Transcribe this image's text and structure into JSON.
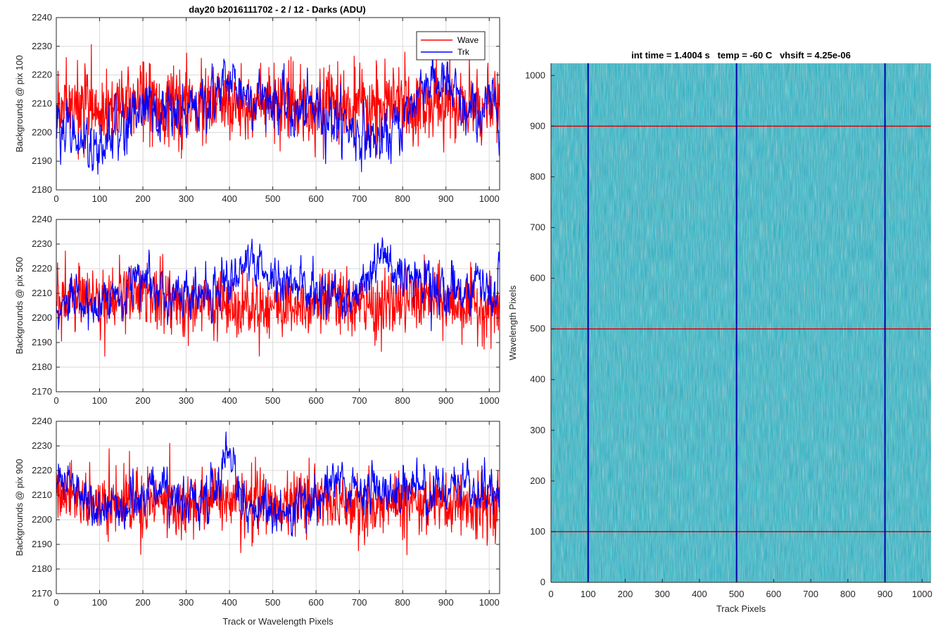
{
  "figure_title": "day20 b2016111702 - 2 / 12 - Darks (ADU)",
  "image_title": "int time = 1.4004 s   temp = -60 C   vhsift = 4.25e-06",
  "colors": {
    "wave": "#ff0000",
    "trk": "#0000ff",
    "grid": "#d9d9d9",
    "axis": "#262626"
  },
  "chart_data": [
    {
      "type": "line",
      "ylabel": "Backgrounds @ pix 100",
      "xlabel": "",
      "xlim": [
        0,
        1024
      ],
      "ylim": [
        2180,
        2240
      ],
      "xticks": [
        0,
        100,
        200,
        300,
        400,
        500,
        600,
        700,
        800,
        900,
        1000
      ],
      "yticks": [
        2180,
        2190,
        2200,
        2210,
        2220,
        2230,
        2240
      ],
      "grid": true,
      "legend": {
        "position": "top-right",
        "entries": [
          "Wave",
          "Trk"
        ]
      },
      "series": [
        {
          "name": "Wave",
          "color": "#ff0000",
          "x": [
            0,
            50,
            100,
            150,
            200,
            250,
            300,
            350,
            400,
            450,
            500,
            550,
            600,
            650,
            700,
            750,
            800,
            850,
            900,
            950,
            1024
          ],
          "values": [
            2210,
            2212,
            2208,
            2210,
            2211,
            2209,
            2208,
            2210,
            2209,
            2210,
            2209,
            2208,
            2210,
            2209,
            2208,
            2209,
            2210,
            2209,
            2210,
            2209,
            2210
          ]
        },
        {
          "name": "Trk",
          "color": "#0000ff",
          "x": [
            0,
            50,
            100,
            150,
            200,
            250,
            300,
            350,
            400,
            450,
            500,
            550,
            600,
            650,
            700,
            750,
            800,
            850,
            900,
            950,
            1024
          ],
          "values": [
            2206,
            2198,
            2194,
            2203,
            2208,
            2206,
            2205,
            2211,
            2218,
            2213,
            2212,
            2206,
            2209,
            2204,
            2200,
            2196,
            2203,
            2219,
            2216,
            2205,
            2210
          ]
        }
      ]
    },
    {
      "type": "line",
      "ylabel": "Backgrounds @ pix 500",
      "xlabel": "",
      "xlim": [
        0,
        1024
      ],
      "ylim": [
        2170,
        2240
      ],
      "xticks": [
        0,
        100,
        200,
        300,
        400,
        500,
        600,
        700,
        800,
        900,
        1000
      ],
      "yticks": [
        2170,
        2180,
        2190,
        2200,
        2210,
        2220,
        2230,
        2240
      ],
      "grid": true,
      "series": [
        {
          "name": "Wave",
          "color": "#ff0000",
          "x": [
            0,
            50,
            100,
            150,
            200,
            250,
            300,
            350,
            400,
            450,
            500,
            550,
            600,
            650,
            700,
            750,
            800,
            850,
            900,
            950,
            1024
          ],
          "values": [
            2208,
            2210,
            2207,
            2209,
            2210,
            2208,
            2206,
            2205,
            2207,
            2206,
            2205,
            2206,
            2207,
            2206,
            2205,
            2204,
            2207,
            2208,
            2206,
            2205,
            2204
          ]
        },
        {
          "name": "Trk",
          "color": "#0000ff",
          "x": [
            0,
            50,
            100,
            150,
            200,
            250,
            300,
            350,
            400,
            450,
            500,
            550,
            600,
            650,
            700,
            750,
            800,
            850,
            900,
            950,
            1024
          ],
          "values": [
            2203,
            2206,
            2205,
            2212,
            2214,
            2212,
            2208,
            2211,
            2217,
            2222,
            2216,
            2213,
            2211,
            2208,
            2212,
            2226,
            2213,
            2216,
            2210,
            2214,
            2211
          ]
        }
      ]
    },
    {
      "type": "line",
      "ylabel": "Backgrounds @ pix 900",
      "xlabel": "Track or Wavelength Pixels",
      "xlim": [
        0,
        1024
      ],
      "ylim": [
        2170,
        2240
      ],
      "xticks": [
        0,
        100,
        200,
        300,
        400,
        500,
        600,
        700,
        800,
        900,
        1000
      ],
      "yticks": [
        2170,
        2180,
        2190,
        2200,
        2210,
        2220,
        2230,
        2240
      ],
      "grid": true,
      "series": [
        {
          "name": "Wave",
          "color": "#ff0000",
          "x": [
            0,
            50,
            100,
            150,
            200,
            250,
            300,
            350,
            400,
            450,
            500,
            550,
            600,
            650,
            700,
            750,
            800,
            850,
            900,
            950,
            1024
          ],
          "values": [
            2212,
            2210,
            2207,
            2206,
            2208,
            2209,
            2206,
            2210,
            2208,
            2207,
            2206,
            2208,
            2209,
            2207,
            2205,
            2206,
            2208,
            2206,
            2207,
            2205,
            2208
          ]
        },
        {
          "name": "Trk",
          "color": "#0000ff",
          "x": [
            0,
            50,
            100,
            150,
            200,
            250,
            300,
            350,
            400,
            450,
            500,
            550,
            600,
            650,
            700,
            750,
            800,
            850,
            900,
            950,
            1024
          ],
          "values": [
            2218,
            2212,
            2206,
            2205,
            2210,
            2214,
            2206,
            2208,
            2226,
            2204,
            2202,
            2205,
            2210,
            2216,
            2212,
            2210,
            2211,
            2213,
            2212,
            2215,
            2210
          ]
        }
      ]
    },
    {
      "type": "heatmap",
      "title": "int time = 1.4004 s   temp = -60 C   vhsift = 4.25e-06",
      "xlabel": "Track Pixels",
      "ylabel": "Wavelength Pixels",
      "xlim": [
        0,
        1024
      ],
      "ylim": [
        0,
        1024
      ],
      "xticks": [
        0,
        100,
        200,
        300,
        400,
        500,
        600,
        700,
        800,
        900,
        1000
      ],
      "yticks": [
        0,
        100,
        200,
        300,
        400,
        500,
        600,
        700,
        800,
        900,
        1000
      ],
      "colormap": [
        "#1f8fc5",
        "#2aa4bc",
        "#4fb69a",
        "#a9c25a"
      ],
      "marker_columns": [
        100,
        500,
        900
      ],
      "marker_rows": [
        100,
        500,
        900
      ],
      "marker_column_color": "#0000aa",
      "marker_row_color": "#dd0000"
    }
  ]
}
